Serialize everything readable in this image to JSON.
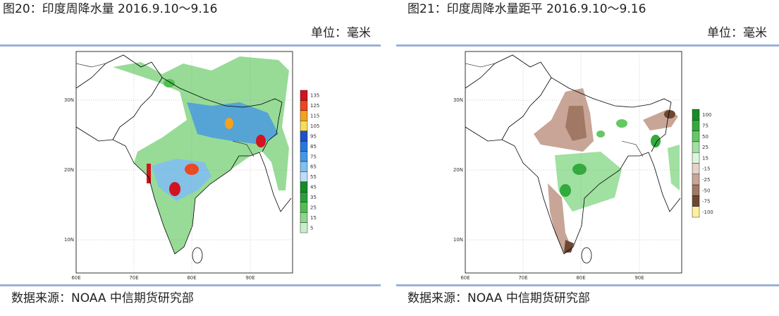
{
  "panels": [
    {
      "title": "图20：印度周降水量 2016.9.10～9.16",
      "unit": "单位：毫米",
      "source": "数据来源：NOAA 中信期货研究部",
      "lat_labels": [
        "30N",
        "20N",
        "10N"
      ],
      "lon_labels": [
        "60E",
        "70E",
        "80E",
        "90E"
      ],
      "colorbar": {
        "labels": [
          "135",
          "125",
          "115",
          "105",
          "95",
          "85",
          "75",
          "65",
          "55",
          "45",
          "35",
          "25",
          "15",
          "5"
        ],
        "colors": [
          "#d2141e",
          "#f0461e",
          "#f5a01e",
          "#f5dc5a",
          "#1e50c8",
          "#2878dc",
          "#4696e6",
          "#82bef0",
          "#bedcf5",
          "#148c28",
          "#28a03c",
          "#50be50",
          "#8cd78c",
          "#c8f0c8"
        ]
      }
    },
    {
      "title": "图21：印度周降水量距平 2016.9.10～9.16",
      "unit": "单位：毫米",
      "source": "数据来源：NOAA 中信期货研究部",
      "lat_labels": [
        "30N",
        "20N",
        "10N"
      ],
      "lon_labels": [
        "60E",
        "70E",
        "80E",
        "90E"
      ],
      "colorbar": {
        "labels": [
          "100",
          "75",
          "50",
          "25",
          "15",
          "-15",
          "-25",
          "-50",
          "-75",
          "-100"
        ],
        "colors": [
          "#148c28",
          "#32aa3c",
          "#64c864",
          "#a0e0a0",
          "#dcf5dc",
          "#e6d2c8",
          "#c8a596",
          "#a07864",
          "#6e4632",
          "#fff0a0"
        ]
      }
    }
  ]
}
